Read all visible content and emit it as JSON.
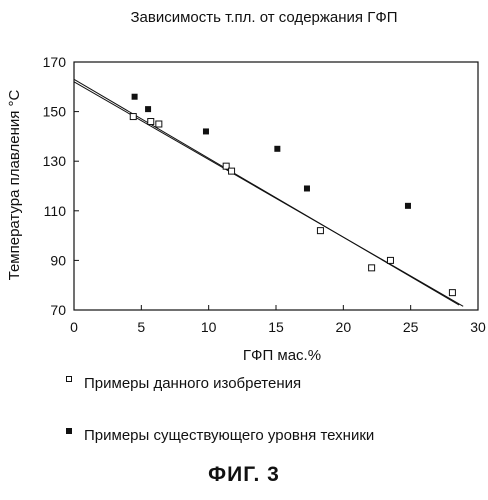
{
  "chart_data": {
    "type": "scatter",
    "title": "Зависимость т.пл. от содержания ГФП",
    "xlabel": "ГФП мас.%",
    "ylabel": "Температура плавления °С",
    "xlim": [
      0,
      30
    ],
    "ylim": [
      70,
      170
    ],
    "x_ticks": [
      "0",
      "5",
      "10",
      "15",
      "20",
      "25",
      "30"
    ],
    "y_ticks": [
      "70",
      "90",
      "110",
      "130",
      "150",
      "170"
    ],
    "series": [
      {
        "name": "Примеры данного изобретения",
        "marker": "open-square",
        "points": [
          {
            "x": 4.4,
            "y": 148
          },
          {
            "x": 5.7,
            "y": 146
          },
          {
            "x": 6.3,
            "y": 145
          },
          {
            "x": 11.3,
            "y": 128
          },
          {
            "x": 11.7,
            "y": 126
          },
          {
            "x": 18.3,
            "y": 102
          },
          {
            "x": 22.1,
            "y": 87
          },
          {
            "x": 23.5,
            "y": 90
          },
          {
            "x": 28.1,
            "y": 77
          }
        ]
      },
      {
        "name": "Примеры существующего уровня техники",
        "marker": "filled-square",
        "points": [
          {
            "x": 4.5,
            "y": 156
          },
          {
            "x": 5.5,
            "y": 151
          },
          {
            "x": 9.8,
            "y": 142
          },
          {
            "x": 15.1,
            "y": 135
          },
          {
            "x": 17.3,
            "y": 119
          },
          {
            "x": 24.8,
            "y": 112
          }
        ]
      }
    ],
    "trend_lines": [
      {
        "x": [
          0,
          28.6
        ],
        "y": [
          163,
          72
        ]
      },
      {
        "x": [
          0,
          28.9
        ],
        "y": [
          162,
          71.5
        ]
      }
    ],
    "legend_position": "below"
  },
  "caption": "ФИГ. 3",
  "colors": {
    "ink": "#111111",
    "background": "#ffffff"
  }
}
